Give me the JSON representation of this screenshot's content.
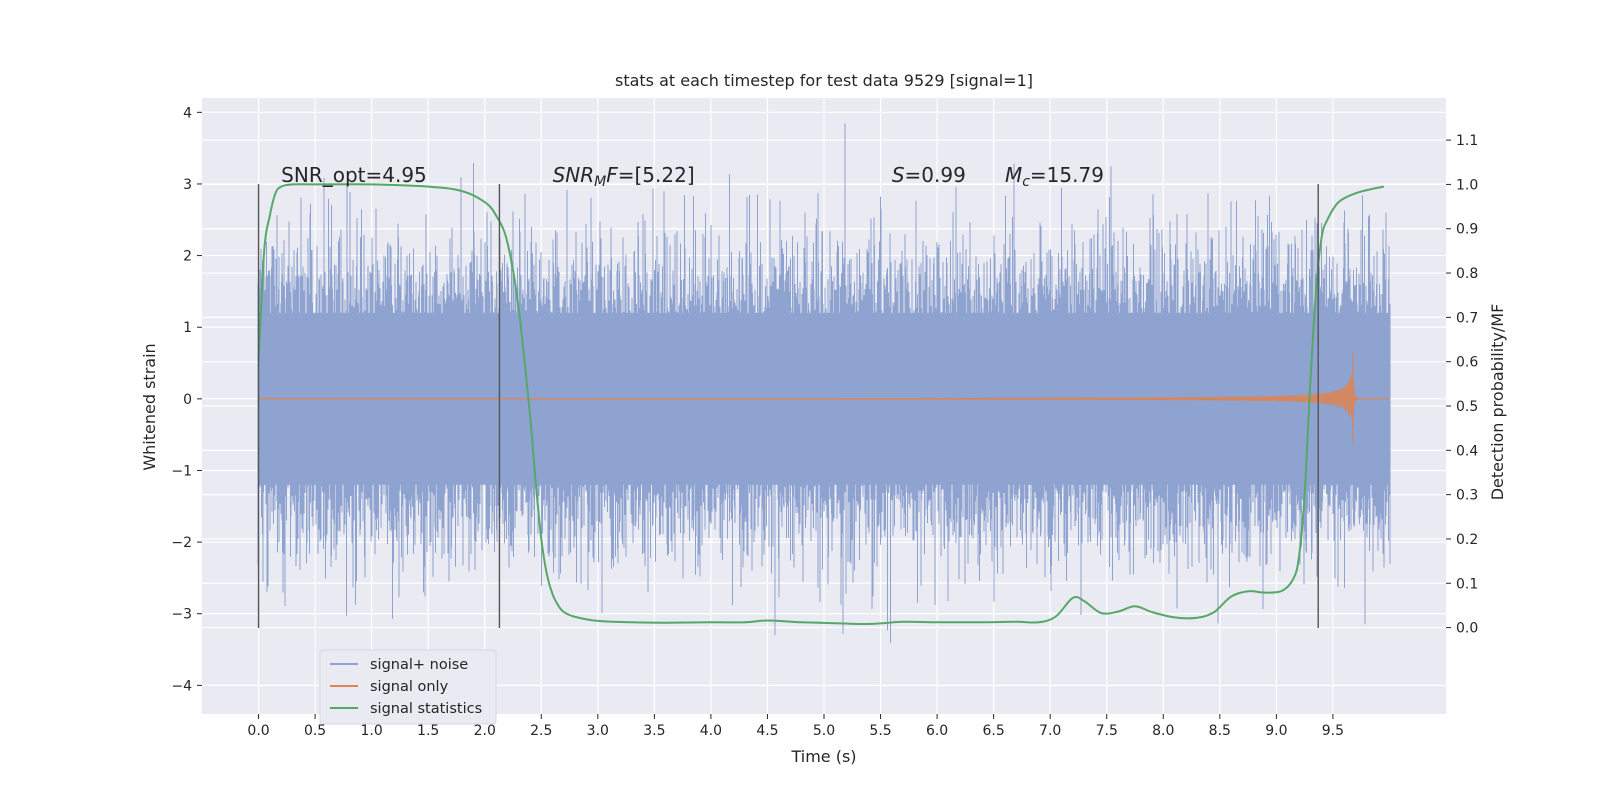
{
  "chart_data": {
    "type": "line",
    "title": "stats at each timestep for test data 9529 [signal=1]",
    "xlabel": "Time (s)",
    "ylabel_left": "Whitened strain",
    "ylabel_right": "Detection probability/MF",
    "xlim": [
      -0.5,
      10.5
    ],
    "ylim_left": [
      -4.4,
      4.2
    ],
    "ylim_right": [
      -0.195,
      1.195
    ],
    "x_ticks": [
      0.0,
      0.5,
      1.0,
      1.5,
      2.0,
      2.5,
      3.0,
      3.5,
      4.0,
      4.5,
      5.0,
      5.5,
      6.0,
      6.5,
      7.0,
      7.5,
      8.0,
      8.5,
      9.0,
      9.5
    ],
    "x_tick_labels": [
      "0.0",
      "0.5",
      "1.0",
      "1.5",
      "2.0",
      "2.5",
      "3.0",
      "3.5",
      "4.0",
      "4.5",
      "5.0",
      "5.5",
      "6.0",
      "6.5",
      "7.0",
      "7.5",
      "8.0",
      "8.5",
      "9.0",
      "9.5"
    ],
    "y_left_ticks": [
      -4,
      -3,
      -2,
      -1,
      0,
      1,
      2,
      3,
      4
    ],
    "y_left_tick_labels": [
      "−4",
      "−3",
      "−2",
      "−1",
      "0",
      "1",
      "2",
      "3",
      "4"
    ],
    "y_right_ticks": [
      0.0,
      0.1,
      0.2,
      0.3,
      0.4,
      0.5,
      0.6,
      0.7,
      0.8,
      0.9,
      1.0,
      1.1
    ],
    "y_right_tick_labels": [
      "0.0",
      "0.1",
      "0.2",
      "0.3",
      "0.4",
      "0.5",
      "0.6",
      "0.7",
      "0.8",
      "0.9",
      "1.0",
      "1.1"
    ],
    "grid": true,
    "legend_position": "bottom-left",
    "series": [
      {
        "name": "signal+ noise",
        "axis": "left",
        "color": "#8ea3cf",
        "kind": "noise",
        "x_range": [
          0.0,
          10.0
        ],
        "body_amplitude": 1.2,
        "peak_envelope": 2.3
      },
      {
        "name": "signal only",
        "axis": "left",
        "color": "#dd8452",
        "kind": "chirp",
        "x_range": [
          0.0,
          10.0
        ],
        "merger_time": 9.67,
        "peak_amplitude": 0.9
      },
      {
        "name": "signal statistics",
        "axis": "right",
        "color": "#55a868",
        "x": [
          0.0,
          0.05,
          0.1,
          0.15,
          0.2,
          0.3,
          0.5,
          1.0,
          1.5,
          1.8,
          2.0,
          2.1,
          2.2,
          2.3,
          2.4,
          2.45,
          2.5,
          2.55,
          2.6,
          2.65,
          2.7,
          2.8,
          3.0,
          3.3,
          3.6,
          4.0,
          4.3,
          4.5,
          4.8,
          5.1,
          5.4,
          5.7,
          6.0,
          6.4,
          6.7,
          6.9,
          7.05,
          7.2,
          7.3,
          7.45,
          7.6,
          7.75,
          7.9,
          8.1,
          8.3,
          8.45,
          8.6,
          8.75,
          8.9,
          9.05,
          9.15,
          9.2,
          9.25,
          9.3,
          9.35,
          9.4,
          9.45,
          9.55,
          9.7,
          9.85,
          9.95
        ],
        "y": [
          0.6,
          0.85,
          0.93,
          0.98,
          0.995,
          1.0,
          1.0,
          1.0,
          0.995,
          0.985,
          0.96,
          0.93,
          0.87,
          0.72,
          0.48,
          0.33,
          0.2,
          0.12,
          0.075,
          0.05,
          0.035,
          0.024,
          0.015,
          0.012,
          0.011,
          0.012,
          0.012,
          0.016,
          0.012,
          0.01,
          0.008,
          0.013,
          0.012,
          0.012,
          0.013,
          0.012,
          0.025,
          0.067,
          0.06,
          0.033,
          0.036,
          0.048,
          0.035,
          0.023,
          0.022,
          0.035,
          0.07,
          0.082,
          0.079,
          0.083,
          0.11,
          0.16,
          0.3,
          0.55,
          0.76,
          0.88,
          0.92,
          0.96,
          0.98,
          0.99,
          0.995
        ]
      }
    ],
    "vertical_lines": [
      {
        "x": 0.0,
        "color": "#555555",
        "y_range": [
          -3.2,
          3.0
        ]
      },
      {
        "x": 2.13,
        "color": "#555555",
        "y_range": [
          -3.2,
          3.0
        ]
      },
      {
        "x": 9.37,
        "color": "#555555",
        "y_range": [
          -3.2,
          3.0
        ]
      }
    ],
    "annotations": [
      {
        "name": "snr-opt-annotation",
        "parts": [
          {
            "t": "SNR_opt=4.95",
            "style": "normal"
          }
        ],
        "x": 0.2,
        "y": 3.0
      },
      {
        "name": "snr-mf-annotation",
        "parts": [
          {
            "t": "SNR",
            "style": "italic"
          },
          {
            "t": "M",
            "style": "italic-sub"
          },
          {
            "t": "F",
            "style": "italic"
          },
          {
            "t": "=[5.22]",
            "style": "normal"
          }
        ],
        "x": 2.6,
        "y": 3.0
      },
      {
        "name": "s-annotation",
        "parts": [
          {
            "t": "S",
            "style": "italic"
          },
          {
            "t": "=0.99",
            "style": "normal"
          }
        ],
        "x": 5.6,
        "y": 3.0
      },
      {
        "name": "mc-annotation",
        "parts": [
          {
            "t": "M",
            "style": "italic"
          },
          {
            "t": "c",
            "style": "italic-sub"
          },
          {
            "t": "=15.79",
            "style": "normal"
          }
        ],
        "x": 6.6,
        "y": 3.0
      }
    ],
    "colors": {
      "plot_background": "#eaeaf2",
      "grid": "#ffffff"
    }
  }
}
